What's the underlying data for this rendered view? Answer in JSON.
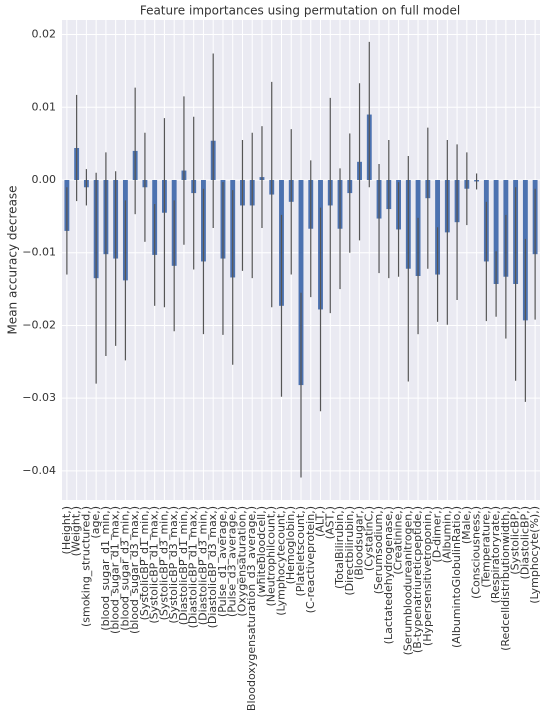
{
  "chart_data": {
    "type": "bar",
    "title": "Feature importances using permutation on full model",
    "ylabel": "Mean accuracy decrease",
    "categories": [
      "(Height,)",
      "(Weight,)",
      "(smoking_structured,)",
      "(age,)",
      "(blood_sugar_d1_min,)",
      "(blood_sugar_d1_max,)",
      "(blood_sugar_d3_min,)",
      "(blood_sugar_d3_max,)",
      "(SystolicBP_d1_min,)",
      "(SystolicBP_d1_max,)",
      "(SystolicBP_d3_min,)",
      "(SystolicBP_d3_max,)",
      "(DiastolicBP_d1_min,)",
      "(DiastolicBP_d1_max,)",
      "(DiastolicBP_d3_min,)",
      "(DiastolicBP_d3_max,)",
      "(Pulse_d1_average,)",
      "(Pulse_d3_average,)",
      "(Oxygensaturation,)",
      "(Bloodoxygensaturation_d3_average,)",
      "(whitebloodcell,)",
      "(Neutrophilcount,)",
      "(Lymphocytecount,)",
      "(Hemoglobin,)",
      "(Plateletscount,)",
      "(C-reactiveprotein,)",
      "(ALT,)",
      "(AST,)",
      "(TotalBilirubin,)",
      "(Directbilirubin,)",
      "(Bloodsugar,)",
      "(CystatinC,)",
      "(Serumsodium,)",
      "(Lactatedehydrogenase,)",
      "(Creatinine,)",
      "(Serumbloodureanitrogen,)",
      "(B-typenatriureticpeptide,)",
      "(Hypersensitivetroponin,)",
      "(D-dimer,)",
      "(Albumin,)",
      "(AlbumintoGlobulinRatio,)",
      "(Male,)",
      "(Consciousness,)",
      "(Temperature,)",
      "(Respiratoryrate,)",
      "(Redcelldistributionwidth,)",
      "(SystolicBP,)",
      "(DiastolicBP,)",
      "(Lymphocyte(%),)"
    ],
    "values": [
      -0.007,
      0.0044,
      -0.001,
      -0.0135,
      -0.0102,
      -0.0108,
      -0.0138,
      0.004,
      -0.001,
      -0.0103,
      -0.0045,
      -0.0118,
      0.0013,
      -0.0018,
      -0.0112,
      0.0054,
      -0.0108,
      -0.0134,
      -0.0035,
      -0.0035,
      0.0004,
      -0.002,
      -0.0173,
      -0.003,
      -0.0282,
      -0.0067,
      -0.0178,
      -0.0035,
      -0.0067,
      -0.0018,
      0.0025,
      0.009,
      -0.0053,
      -0.004,
      -0.0068,
      -0.0122,
      -0.0132,
      -0.0025,
      -0.013,
      -0.0072,
      -0.0058,
      -0.0012,
      -0.0002,
      -0.0112,
      -0.0143,
      -0.0133,
      -0.0143,
      -0.0193,
      -0.0102
    ],
    "errors": [
      0.006,
      0.0073,
      0.0025,
      0.0145,
      0.014,
      0.012,
      0.011,
      0.0087,
      0.0075,
      0.007,
      0.013,
      0.009,
      0.0102,
      0.0105,
      0.01,
      0.012,
      0.0105,
      0.012,
      0.009,
      0.01,
      0.007,
      0.0155,
      0.0125,
      0.01,
      0.0127,
      0.0094,
      0.014,
      0.0148,
      0.0083,
      0.0082,
      0.0108,
      0.01,
      0.0075,
      0.0095,
      0.0065,
      0.0155,
      0.008,
      0.0097,
      0.0065,
      0.0127,
      0.0107,
      0.005,
      0.0011,
      0.0082,
      0.0045,
      0.0085,
      0.0133,
      0.0112,
      0.009
    ],
    "color": "#4c72b0",
    "error_color": "#555555",
    "ylim": [
      -0.044,
      0.022
    ],
    "yticks": [
      {
        "value": 0.02,
        "label": "0.02"
      },
      {
        "value": 0.01,
        "label": "0.01"
      },
      {
        "value": 0,
        "label": "0.00"
      },
      {
        "value": -0.01,
        "label": "−0.01"
      },
      {
        "value": -0.02,
        "label": "−0.02"
      },
      {
        "value": -0.03,
        "label": "−0.03"
      },
      {
        "value": -0.04,
        "label": "−0.04"
      }
    ],
    "grid": true
  }
}
